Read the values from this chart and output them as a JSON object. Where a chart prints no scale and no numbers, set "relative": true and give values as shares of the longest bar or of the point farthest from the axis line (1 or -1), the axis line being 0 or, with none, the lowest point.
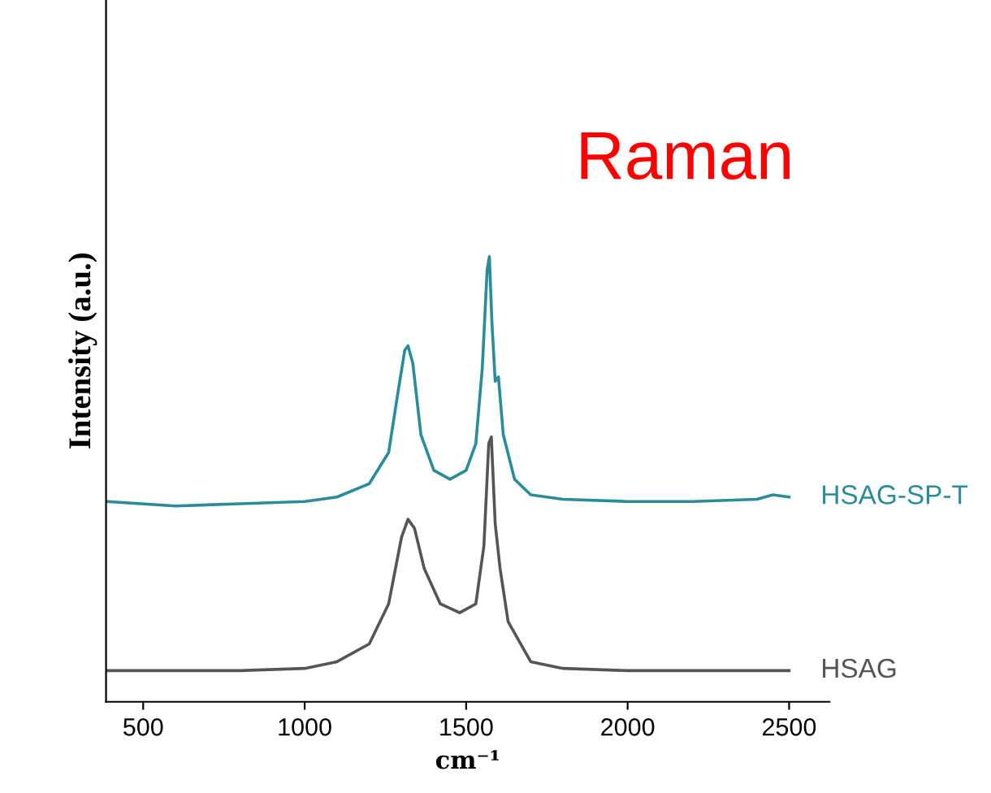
{
  "chart_data": {
    "type": "line",
    "relative": true,
    "xlabel": "cm⁻¹",
    "ylabel": "Intensity (a.u.)",
    "annotations": [
      "Raman"
    ],
    "xlim": [
      385,
      2625
    ],
    "xticks": [
      500,
      1000,
      1500,
      2000,
      2500
    ],
    "grid": false,
    "series": [
      {
        "name": "HSAG-SP-T",
        "color": "#2a8c9a",
        "x": [
          390,
          600,
          800,
          1000,
          1100,
          1200,
          1260,
          1290,
          1310,
          1320,
          1335,
          1360,
          1400,
          1450,
          1500,
          1530,
          1550,
          1565,
          1572,
          1580,
          1590,
          1600,
          1615,
          1650,
          1700,
          1800,
          2000,
          2200,
          2400,
          2450,
          2500
        ],
        "values": [
          0.45,
          0.44,
          0.445,
          0.45,
          0.46,
          0.49,
          0.56,
          0.7,
          0.79,
          0.8,
          0.76,
          0.6,
          0.52,
          0.5,
          0.52,
          0.58,
          0.75,
          0.97,
          1.0,
          0.85,
          0.72,
          0.73,
          0.6,
          0.5,
          0.465,
          0.455,
          0.45,
          0.45,
          0.455,
          0.465,
          0.46
        ]
      },
      {
        "name": "HSAG",
        "color": "#555555",
        "x": [
          390,
          600,
          800,
          1000,
          1100,
          1200,
          1260,
          1300,
          1320,
          1340,
          1370,
          1420,
          1480,
          1530,
          1555,
          1570,
          1578,
          1590,
          1605,
          1630,
          1700,
          1800,
          2000,
          2500
        ],
        "values": [
          0.07,
          0.07,
          0.07,
          0.075,
          0.09,
          0.13,
          0.22,
          0.37,
          0.41,
          0.39,
          0.3,
          0.22,
          0.2,
          0.22,
          0.35,
          0.58,
          0.595,
          0.4,
          0.3,
          0.18,
          0.09,
          0.075,
          0.07,
          0.07
        ]
      }
    ]
  }
}
